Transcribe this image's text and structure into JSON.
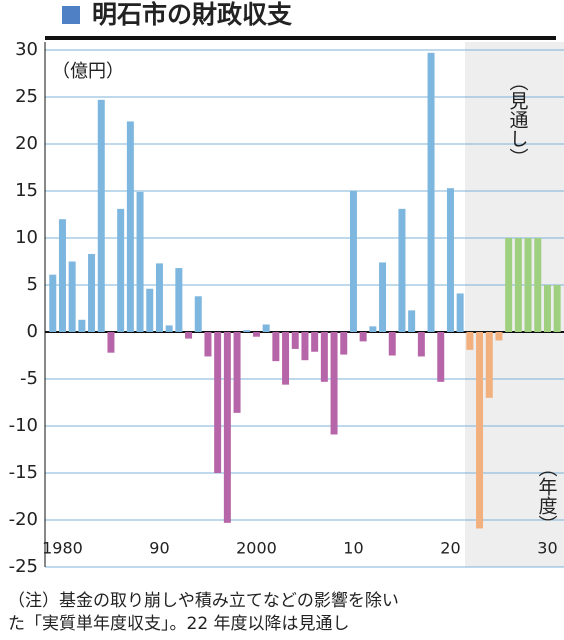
{
  "chart_data": {
    "type": "bar",
    "title": "明石市の財政収支",
    "y_label": "（億円）",
    "forecast_label": "（見通し）",
    "x_label": "（年度）",
    "x": [
      1979,
      1980,
      1981,
      1982,
      1983,
      1984,
      1985,
      1986,
      1987,
      1988,
      1989,
      1990,
      1991,
      1992,
      1993,
      1994,
      1995,
      1996,
      1997,
      1998,
      1999,
      2000,
      2001,
      2002,
      2003,
      2004,
      2005,
      2006,
      2007,
      2008,
      2009,
      2010,
      2011,
      2012,
      2013,
      2014,
      2015,
      2016,
      2017,
      2018,
      2019,
      2020,
      2021,
      2022,
      2023,
      2024,
      2025,
      2026,
      2027,
      2028,
      2029,
      2030,
      2031
    ],
    "values": [
      6.1,
      12,
      7.5,
      1.3,
      8.3,
      24.7,
      -2.2,
      13.1,
      22.4,
      14.9,
      4.6,
      7.3,
      0.7,
      6.8,
      -0.7,
      3.8,
      -2.6,
      -15,
      -20.3,
      -8.6,
      0.2,
      -0.5,
      0.8,
      -3.1,
      -5.6,
      -1.8,
      -3,
      -2.1,
      -5.3,
      -10.9,
      -2.4,
      15,
      -1,
      0.6,
      7.4,
      -2.5,
      13.1,
      2.3,
      -2.6,
      29.7,
      -5.3,
      15.3,
      4.1,
      -1.9,
      -20.9,
      -7,
      -0.9,
      10,
      10,
      10,
      10,
      5,
      5
    ],
    "colors": {
      "positive": "#7db6de",
      "negative": "#b565a8",
      "forecast_positive": "#9fd07f",
      "forecast_negative": "#f2b07f"
    },
    "forecast_from": 2022,
    "xlim": [
      1978.2,
      2031.5
    ],
    "xticks": [
      {
        "value": 1980,
        "label": "1980"
      },
      {
        "value": 1990,
        "label": "90"
      },
      {
        "value": 2000,
        "label": "2000"
      },
      {
        "value": 2010,
        "label": "10"
      },
      {
        "value": 2020,
        "label": "20"
      },
      {
        "value": 2030,
        "label": "30"
      }
    ],
    "ylim": [
      -25,
      30
    ],
    "yticks": [
      -25,
      -20,
      -15,
      -10,
      -5,
      0,
      5,
      10,
      15,
      20,
      25,
      30
    ],
    "grid": true
  },
  "note": [
    "（注）基金の取り崩しや積み立てなどの影響を除い",
    "た「実質単年度収支」。22 年度以降は見通し"
  ]
}
